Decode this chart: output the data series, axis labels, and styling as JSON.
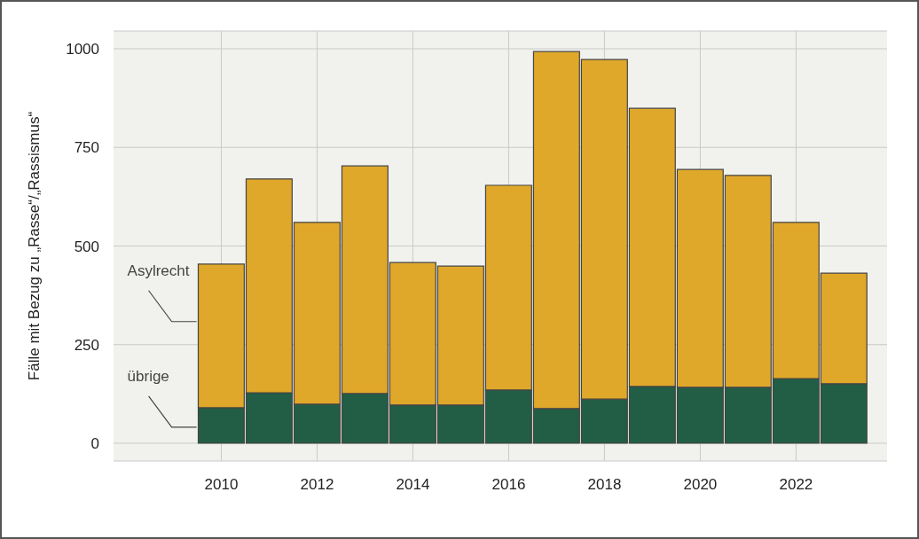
{
  "chart_data": {
    "type": "bar",
    "stacked": true,
    "ylabel": "Fälle mit Bezug zu „Rasse“/„Rassismus“",
    "x": [
      2010,
      2011,
      2012,
      2013,
      2014,
      2015,
      2016,
      2017,
      2018,
      2019,
      2020,
      2021,
      2022,
      2023
    ],
    "series": [
      {
        "name": "übrige",
        "color": "#215e45",
        "values": [
          90,
          128,
          99,
          126,
          97,
          97,
          135,
          88,
          112,
          144,
          142,
          142,
          164,
          151
        ]
      },
      {
        "name": "Asylrecht",
        "color": "#e0a82a",
        "values": [
          364,
          542,
          461,
          577,
          361,
          352,
          519,
          905,
          861,
          705,
          552,
          537,
          396,
          280
        ]
      }
    ],
    "xlim": [
      2007.75,
      2023.9
    ],
    "xticks": [
      2010,
      2012,
      2014,
      2016,
      2018,
      2020,
      2022
    ],
    "ylim": [
      -45,
      1045
    ],
    "yticks": [
      0,
      250,
      500,
      750,
      1000
    ],
    "grid": true,
    "legend": false
  }
}
